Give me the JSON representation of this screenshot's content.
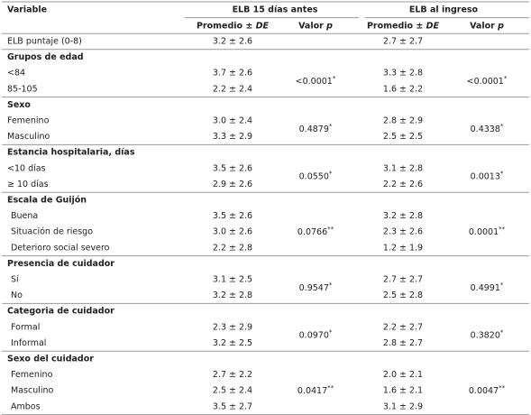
{
  "header": {
    "variable": "Variable",
    "groups": [
      "ELB 15 días antes",
      "ELB al ingreso"
    ],
    "columns": [
      {
        "text": "Promedio ±",
        "italic": "DE"
      },
      {
        "text": "Valor",
        "italic": "p"
      },
      {
        "text": "Promedio ±",
        "italic": "DE"
      },
      {
        "text": "Valor",
        "italic": "p"
      }
    ]
  },
  "table": {
    "first_row": {
      "label": "ELB puntaje (0-8)",
      "values": [
        "3.2 ± 2.6",
        "2.7 ± 2.7"
      ]
    },
    "groups": [
      {
        "title": "Grupos de edad",
        "rows": [
          {
            "label": "<84",
            "values": [
              "3.7 ± 2.6",
              "3.3 ± 2.8"
            ]
          },
          {
            "label": "85-105",
            "values": [
              "2.2 ± 2.4",
              "1.6 ± 2.2"
            ]
          }
        ],
        "p_values": [
          {
            "value": "<0.0001",
            "mark": "*"
          },
          {
            "value": "<0.0001",
            "mark": "*"
          }
        ]
      },
      {
        "title": "Sexo",
        "rows": [
          {
            "label": "Femenino",
            "values": [
              "3.0 ± 2.4",
              "2.8 ± 2.9"
            ]
          },
          {
            "label": "Masculino",
            "values": [
              "3.3 ± 2.9",
              "2.5 ± 2.5"
            ]
          }
        ],
        "p_values": [
          {
            "value": "0.4879",
            "mark": "*"
          },
          {
            "value": "0.4338",
            "mark": "*"
          }
        ]
      },
      {
        "title": "Estancia hospitalaria, días",
        "rows": [
          {
            "label": "<10 días",
            "values": [
              "3.5 ± 2.6",
              "3.1 ± 2.8"
            ]
          },
          {
            "label": "≥ 10 días",
            "values": [
              "2.9 ± 2.6",
              "2.2 ± 2.6"
            ]
          }
        ],
        "p_values": [
          {
            "value": "0.0550",
            "mark": "*"
          },
          {
            "value": "0.0013",
            "mark": "*"
          }
        ]
      },
      {
        "title": "Escala de Guijón",
        "rows": [
          {
            "label": "Buena",
            "values": [
              "3.5 ± 2.6",
              "3.2 ± 2.8"
            ]
          },
          {
            "label": "Situación de riesgo",
            "values": [
              "3.0 ± 2.6",
              "2.3 ± 2.6"
            ]
          },
          {
            "label": "Deterioro social severo",
            "values": [
              "2.2 ± 2.8",
              "1.2 ± 1.9"
            ]
          }
        ],
        "p_values": [
          {
            "value": "0.0766",
            "mark": "**"
          },
          {
            "value": "0.0001",
            "mark": "**"
          }
        ]
      },
      {
        "title": "Presencia de cuidador",
        "rows": [
          {
            "label": "Sí",
            "values": [
              "3.1 ± 2.5",
              "2.7 ± 2.7"
            ]
          },
          {
            "label": "No",
            "values": [
              "3.2 ± 2.8",
              "2.5 ± 2.8"
            ]
          }
        ],
        "p_values": [
          {
            "value": "0.9547",
            "mark": "*"
          },
          {
            "value": "0.4991",
            "mark": "*"
          }
        ]
      },
      {
        "title": "Categoria de cuidador",
        "rows": [
          {
            "label": "Formal",
            "values": [
              "2.3 ± 2.9",
              "2.2 ± 2.7"
            ]
          },
          {
            "label": "Informal",
            "values": [
              "3.2 ± 2.5",
              "2.8 ± 2.7"
            ]
          }
        ],
        "p_values": [
          {
            "value": "0.0970",
            "mark": "*"
          },
          {
            "value": "0.3820",
            "mark": "*"
          }
        ]
      },
      {
        "title": "Sexo del cuidador",
        "rows": [
          {
            "label": "Femenino",
            "values": [
              "2.7 ± 2.2",
              "2.0 ± 2.1"
            ]
          },
          {
            "label": "Masculino",
            "values": [
              "2.5 ± 2.4",
              "1.6 ± 2.1"
            ]
          },
          {
            "label": "Ambos",
            "values": [
              "3.5 ± 2.7",
              "3.1 ± 2.9"
            ]
          }
        ],
        "p_values": [
          {
            "value": "0.0417",
            "mark": "**"
          },
          {
            "value": "0.0047",
            "mark": "**"
          }
        ]
      }
    ]
  }
}
